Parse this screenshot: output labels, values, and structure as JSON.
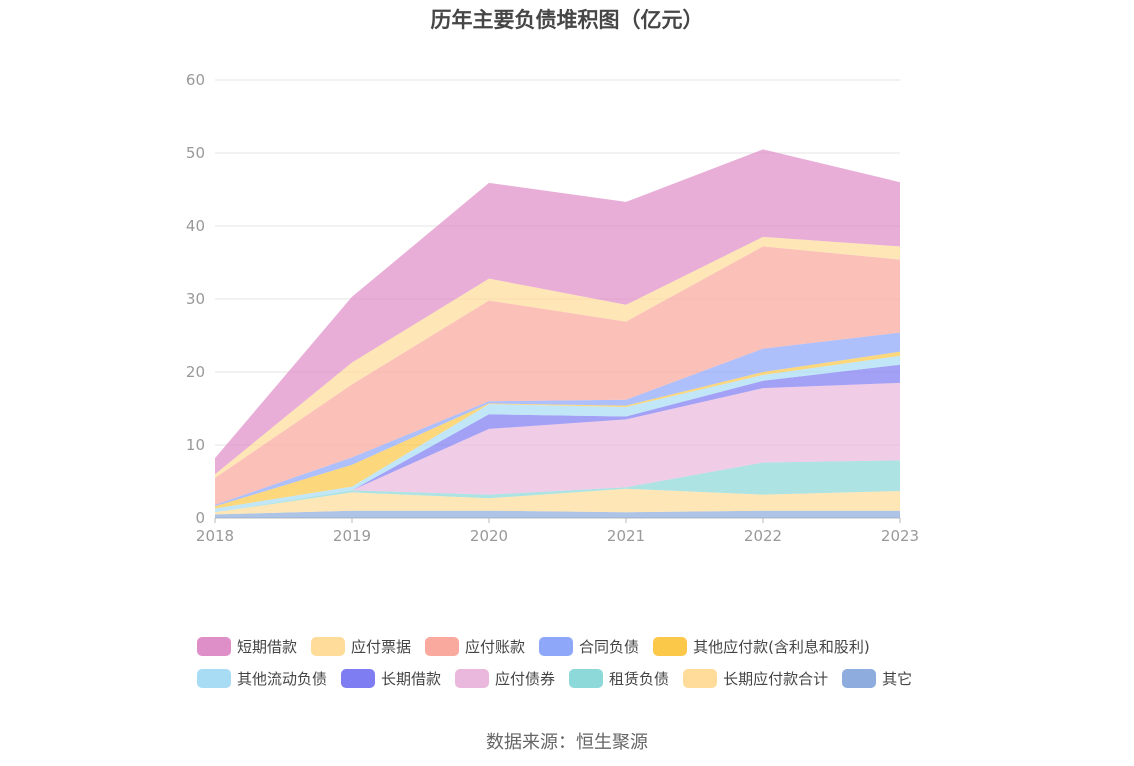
{
  "title": "历年主要负债堆积图（亿元）",
  "source": "数据来源：恒生聚源",
  "chart_data": {
    "type": "area",
    "stacked": true,
    "title": "历年主要负债堆积图（亿元）",
    "x": [
      "2018",
      "2019",
      "2020",
      "2021",
      "2022",
      "2023"
    ],
    "y_ticks": [
      "0",
      "10",
      "20",
      "30",
      "40",
      "50",
      "60"
    ],
    "ylim": [
      0,
      60
    ],
    "grid": true,
    "legend_position": "bottom",
    "series": [
      {
        "name": "其它",
        "color": "#8eadde",
        "values": [
          0.5,
          1.0,
          1.0,
          0.8,
          1.0,
          1.0
        ]
      },
      {
        "name": "长期应付款合计",
        "color": "#ffdc9a",
        "values": [
          0.3,
          2.5,
          1.7,
          3.2,
          2.2,
          2.7
        ]
      },
      {
        "name": "租赁负债",
        "color": "#8dd8d8",
        "values": [
          0.0,
          0.3,
          0.5,
          0.2,
          4.4,
          4.2
        ]
      },
      {
        "name": "应付债券",
        "color": "#eab8dc",
        "values": [
          0.0,
          0.0,
          9.0,
          9.3,
          10.2,
          10.6
        ]
      },
      {
        "name": "长期借款",
        "color": "#7f7df2",
        "values": [
          0.0,
          0.0,
          2.0,
          0.4,
          1.0,
          2.5
        ]
      },
      {
        "name": "其他流动负债",
        "color": "#a8dcf5",
        "values": [
          0.5,
          0.5,
          1.4,
          1.3,
          0.8,
          1.2
        ]
      },
      {
        "name": "其他应付款(含利息和股利)",
        "color": "#fbc84a",
        "values": [
          0.3,
          3.0,
          0.1,
          0.2,
          0.4,
          0.6
        ]
      },
      {
        "name": "合同负债",
        "color": "#8ea7f9",
        "values": [
          0.2,
          1.0,
          0.3,
          0.8,
          3.2,
          2.6
        ]
      },
      {
        "name": "应付账款",
        "color": "#f9a99e",
        "values": [
          3.7,
          10.0,
          13.8,
          10.7,
          14.0,
          10.0
        ]
      },
      {
        "name": "应付票据",
        "color": "#ffdc9a",
        "values": [
          0.5,
          3.0,
          3.0,
          2.3,
          1.3,
          1.8
        ]
      },
      {
        "name": "短期借款",
        "color": "#df8fc8",
        "values": [
          2.2,
          9.0,
          13.1,
          14.1,
          12.0,
          8.8
        ]
      }
    ]
  },
  "legend_rows": [
    [
      {
        "name": "短期借款",
        "color": "#df8fc8"
      },
      {
        "name": "应付票据",
        "color": "#ffdc9a"
      },
      {
        "name": "应付账款",
        "color": "#f9a99e"
      },
      {
        "name": "合同负债",
        "color": "#8ea7f9"
      },
      {
        "name": "其他应付款(含利息和股利)",
        "color": "#fbc84a"
      }
    ],
    [
      {
        "name": "其他流动负债",
        "color": "#a8dcf5"
      },
      {
        "name": "长期借款",
        "color": "#7f7df2"
      },
      {
        "name": "应付债券",
        "color": "#eab8dc"
      },
      {
        "name": "租赁负债",
        "color": "#8dd8d8"
      },
      {
        "name": "长期应付款合计",
        "color": "#ffdc9a"
      },
      {
        "name": "其它",
        "color": "#8eadde"
      }
    ]
  ]
}
